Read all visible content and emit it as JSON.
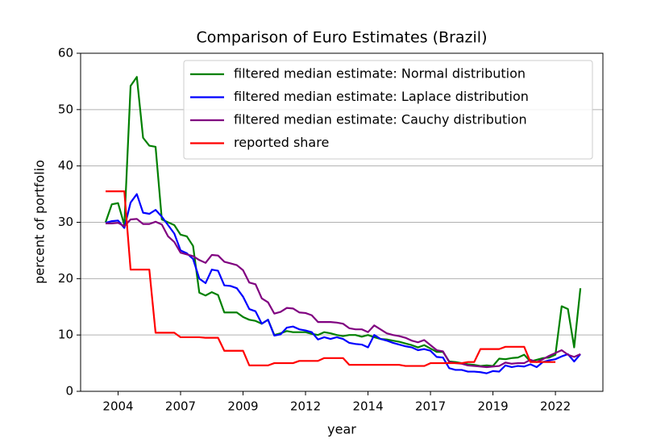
{
  "chart_data": {
    "type": "line",
    "title": "Comparison of Euro Estimates (Brazil)",
    "x_label": "year",
    "y_label": "percent of portfolio",
    "x": [
      2003.5,
      2003.75,
      2004,
      2004.25,
      2004.5,
      2004.75,
      2005,
      2005.25,
      2005.5,
      2005.75,
      2006,
      2006.25,
      2006.5,
      2006.75,
      2007,
      2007.25,
      2007.5,
      2007.75,
      2008,
      2008.25,
      2008.5,
      2008.75,
      2009,
      2009.25,
      2009.5,
      2009.75,
      2010,
      2010.25,
      2010.5,
      2010.75,
      2011,
      2011.25,
      2011.5,
      2011.75,
      2012,
      2012.25,
      2012.5,
      2012.75,
      2013,
      2013.25,
      2013.5,
      2013.75,
      2014,
      2014.25,
      2014.5,
      2014.75,
      2015,
      2015.25,
      2015.5,
      2015.75,
      2016,
      2016.25,
      2016.5,
      2016.75,
      2017,
      2017.25,
      2017.5,
      2017.75,
      2018,
      2018.25,
      2018.5,
      2018.75,
      2019,
      2019.25,
      2019.5,
      2019.75,
      2020,
      2020.25,
      2020.5,
      2020.75,
      2021,
      2021.25,
      2021.5,
      2021.75,
      2022,
      2022.25,
      2022.5
    ],
    "series": [
      {
        "name": "filtered median estimate: Normal distribution",
        "color": "#008000",
        "values": [
          30,
          33.2,
          33.4,
          29.5,
          54.2,
          55.8,
          45,
          43.6,
          43.4,
          30.5,
          30,
          29.5,
          27.8,
          27.5,
          25.8,
          17.5,
          17,
          17.6,
          17.1,
          14,
          14,
          14,
          13.2,
          12.7,
          12.5,
          12,
          12.7,
          10,
          10.3,
          10.7,
          10.5,
          10.5,
          10.5,
          10.2,
          10,
          10.5,
          10.3,
          10,
          9.8,
          10,
          10,
          9.7,
          10,
          9.6,
          9.3,
          9.2,
          9,
          8.8,
          8.5,
          8.2,
          7.8,
          8.2,
          7.6,
          7,
          7,
          5.3,
          5.2,
          5,
          4.8,
          4.7,
          4.5,
          4.6,
          4.5,
          5.8,
          5.7,
          5.9,
          6,
          6.5,
          5.3,
          5.6,
          5.9,
          6,
          6.5,
          15.1,
          14.6,
          7.8,
          18.3
        ]
      },
      {
        "name": "filtered median estimate: Laplace distribution",
        "color": "#0000ff",
        "values": [
          29.9,
          30.2,
          30.3,
          29,
          33.5,
          35,
          31.7,
          31.5,
          32.2,
          31,
          29.5,
          28,
          25,
          24.5,
          23.5,
          20,
          19.2,
          21.6,
          21.4,
          18.8,
          18.7,
          18.3,
          16.8,
          14.6,
          14.2,
          12,
          12.7,
          9.9,
          10.1,
          11.3,
          11.5,
          11,
          10.8,
          10.5,
          9.2,
          9.6,
          9.3,
          9.6,
          9.3,
          8.6,
          8.4,
          8.3,
          7.8,
          10,
          9.3,
          9,
          8.6,
          8.3,
          8,
          7.8,
          7.3,
          7.5,
          7.2,
          6.1,
          6,
          4.1,
          3.8,
          3.8,
          3.5,
          3.5,
          3.4,
          3.2,
          3.6,
          3.5,
          4.6,
          4.3,
          4.5,
          4.4,
          4.8,
          4.3,
          5.2,
          5.5,
          5.7,
          6.2,
          6.6,
          5.3,
          6.6
        ]
      },
      {
        "name": "filtered median estimate: Cauchy distribution",
        "color": "#800080",
        "values": [
          29.8,
          29.8,
          29.9,
          29.3,
          30.5,
          30.6,
          29.7,
          29.7,
          30.1,
          29.6,
          27.5,
          26.5,
          24.6,
          24.3,
          24,
          23.3,
          22.8,
          24.2,
          24.1,
          23,
          22.7,
          22.4,
          21.5,
          19.3,
          19,
          16.5,
          15.8,
          13.8,
          14.1,
          14.8,
          14.7,
          14,
          13.9,
          13.5,
          12.3,
          12.3,
          12.3,
          12.2,
          12,
          11.2,
          11,
          11,
          10.5,
          11.7,
          11,
          10.3,
          10,
          9.8,
          9.5,
          9,
          8.7,
          9.1,
          8.2,
          7.3,
          7.1,
          5.2,
          5,
          4.9,
          4.6,
          4.5,
          4.4,
          4.3,
          4.4,
          4.5,
          5.1,
          4.9,
          5,
          5,
          5.6,
          5.2,
          5.7,
          6.3,
          6.8,
          7.3,
          6.5,
          6.1,
          6.6
        ]
      },
      {
        "name": "reported share",
        "color": "#ff0000",
        "values": [
          35.5,
          35.5,
          35.5,
          35.5,
          21.6,
          21.6,
          21.6,
          21.6,
          10.4,
          10.4,
          10.4,
          10.4,
          9.6,
          9.6,
          9.6,
          9.6,
          9.5,
          9.5,
          9.5,
          7.2,
          7.2,
          7.2,
          7.2,
          4.6,
          4.6,
          4.6,
          4.6,
          5,
          5,
          5,
          5,
          5.4,
          5.4,
          5.4,
          5.4,
          5.9,
          5.9,
          5.9,
          5.9,
          4.7,
          4.7,
          4.7,
          4.7,
          4.7,
          4.7,
          4.7,
          4.7,
          4.7,
          4.5,
          4.5,
          4.5,
          4.5,
          5,
          5,
          5,
          5,
          5,
          5,
          5.2,
          5.2,
          7.5,
          7.5,
          7.5,
          7.5,
          7.9,
          7.9,
          7.9,
          7.9,
          5.2,
          5.2,
          5.2,
          5.2,
          5.2,
          null,
          null,
          null,
          null
        ]
      }
    ],
    "xlim": [
      2002.5,
      2023.4
    ],
    "xticks": [
      {
        "value": 2004,
        "label": "2004"
      },
      {
        "value": 2006.5,
        "label": "2007"
      },
      {
        "value": 2009,
        "label": "2009"
      },
      {
        "value": 2011.5,
        "label": "2012"
      },
      {
        "value": 2014,
        "label": "2014"
      },
      {
        "value": 2016.5,
        "label": "2017"
      },
      {
        "value": 2019,
        "label": "2019"
      },
      {
        "value": 2021.5,
        "label": "2022"
      }
    ],
    "ylim": [
      0,
      60
    ],
    "yticks": [
      0,
      10,
      20,
      30,
      40,
      50,
      60
    ],
    "grid": "y",
    "legend": "upper right"
  }
}
